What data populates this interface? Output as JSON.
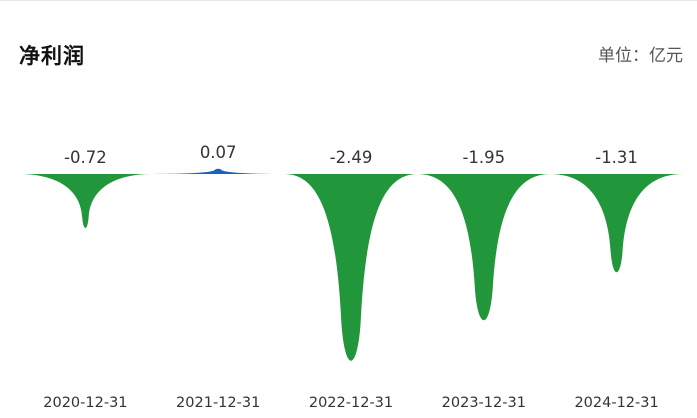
{
  "header": {
    "title": "净利润",
    "unit": "单位：亿元"
  },
  "colors": {
    "negative": "#22963b",
    "positive": "#1565c0",
    "text": "#333333"
  },
  "chart_data": {
    "type": "area",
    "title": "净利润",
    "unit": "亿元",
    "categories": [
      "2020-12-31",
      "2021-12-31",
      "2022-12-31",
      "2023-12-31",
      "2024-12-31"
    ],
    "values": [
      -0.72,
      0.07,
      -2.49,
      -1.95,
      -1.31
    ],
    "value_labels": [
      "-0.72",
      "0.07",
      "-2.49",
      "-1.95",
      "-1.31"
    ],
    "xlabel": "",
    "ylabel": "",
    "grid": false,
    "legend": "none"
  }
}
